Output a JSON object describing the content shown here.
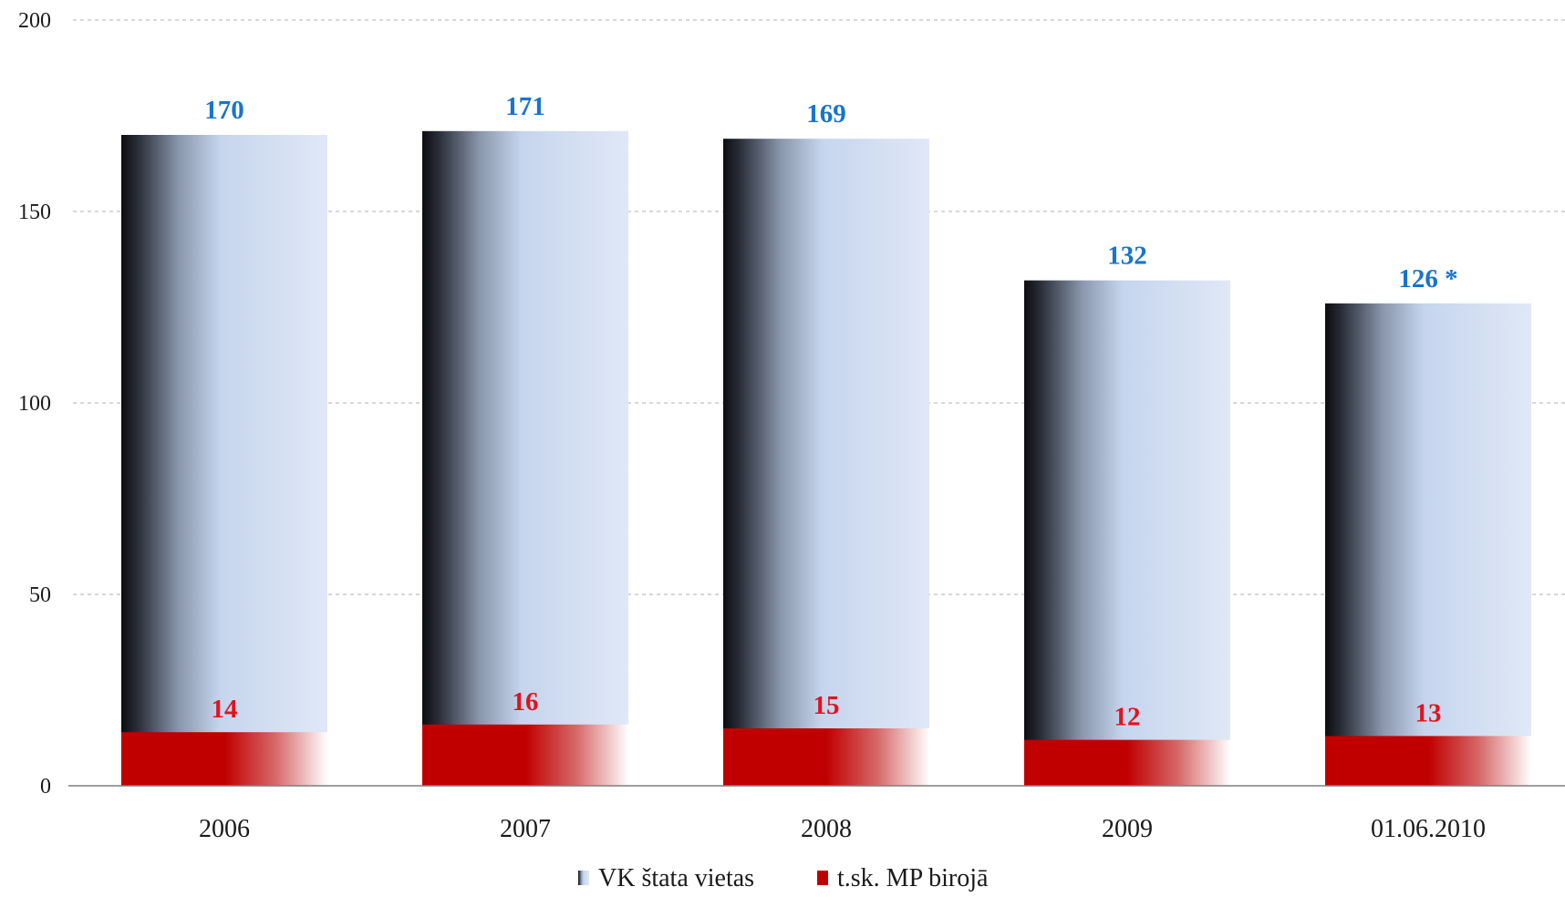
{
  "chart_data": {
    "type": "bar",
    "categories": [
      "2006",
      "2007",
      "2008",
      "2009",
      "01.06.2010"
    ],
    "series": [
      {
        "name": "VK štata vietas",
        "values": [
          170,
          171,
          169,
          132,
          126
        ],
        "data_labels": [
          "170",
          "171",
          "169",
          "132",
          "126 *"
        ],
        "label_color": "#1874cd"
      },
      {
        "name": "t.sk. MP birojā",
        "values": [
          14,
          16,
          15,
          12,
          13
        ],
        "data_labels": [
          "14",
          "16",
          "15",
          "12",
          "13"
        ],
        "label_color": "#e0141e"
      }
    ],
    "title": "",
    "xlabel": "",
    "ylabel": "",
    "ylim": [
      0,
      200
    ],
    "yticks": [
      0,
      50,
      100,
      150,
      200
    ],
    "grid": true,
    "grid_style": "dashed",
    "overlap": true,
    "legend_position": "bottom-center"
  },
  "colors": {
    "total_dark": "#0c0c10",
    "total_mid": "#c6d5ee",
    "total_light": "#e0e8f6",
    "sub_main": "#c00000",
    "sub_fade": "#ffffff",
    "grid": "#c0c0c0",
    "axis": "#7f7f7f"
  }
}
